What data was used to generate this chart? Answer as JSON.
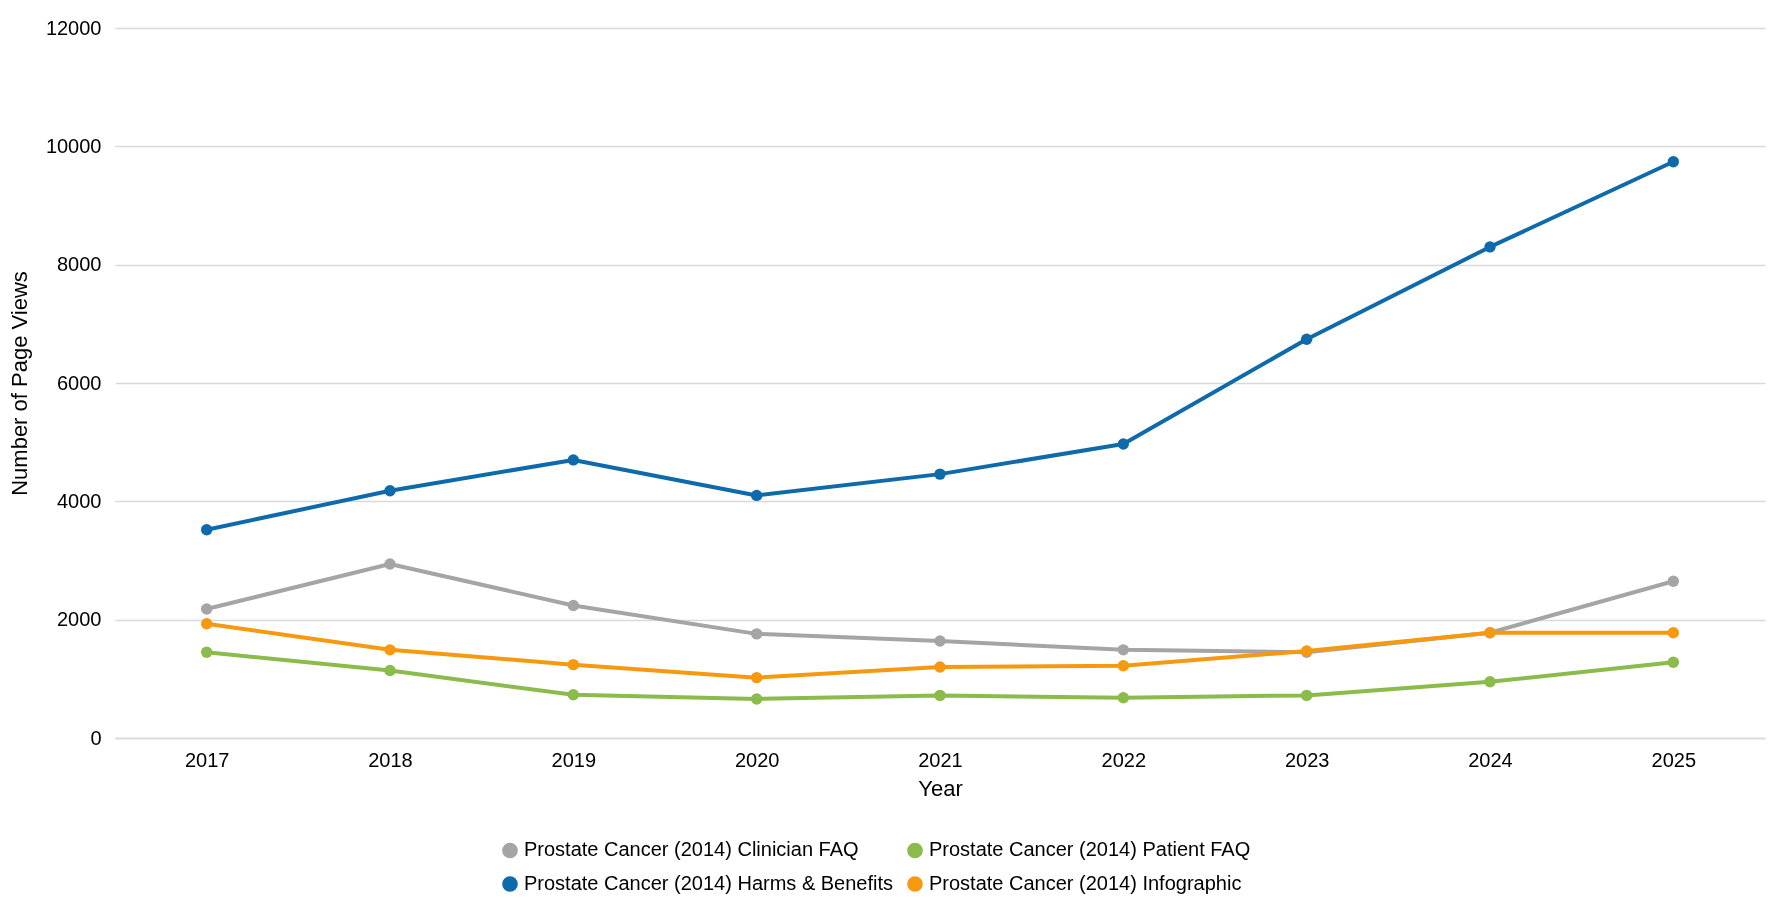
{
  "chart_data": {
    "type": "line",
    "xlabel": "Year",
    "ylabel": "Number of Page Views",
    "categories": [
      "2017",
      "2018",
      "2019",
      "2020",
      "2021",
      "2022",
      "2023",
      "2024",
      "2025"
    ],
    "ylim": [
      0,
      12000
    ],
    "yticks": [
      0,
      2000,
      4000,
      6000,
      8000,
      10000,
      12000
    ],
    "grid": "y",
    "legend": "bottom",
    "marker": "circle",
    "line_style": "solid",
    "series": [
      {
        "name": "Prostate Cancer (2014) Clinician FAQ",
        "color": "#a5a5a5",
        "values": [
          2180,
          2940,
          2240,
          1760,
          1640,
          1490,
          1450,
          1780,
          2650
        ]
      },
      {
        "name": "Prostate Cancer (2014) Patient FAQ",
        "color": "#8bbb4b",
        "values": [
          1450,
          1140,
          730,
          660,
          720,
          680,
          720,
          950,
          1280
        ]
      },
      {
        "name": "Prostate Cancer (2014) Harms & Benefits",
        "color": "#0f6aab",
        "values": [
          3520,
          4180,
          4700,
          4100,
          4460,
          4970,
          6740,
          8300,
          9740
        ]
      },
      {
        "name": "Prostate Cancer (2014) Infographic",
        "color": "#f7990f",
        "values": [
          1930,
          1490,
          1240,
          1020,
          1200,
          1220,
          1470,
          1780,
          1780
        ]
      }
    ]
  }
}
